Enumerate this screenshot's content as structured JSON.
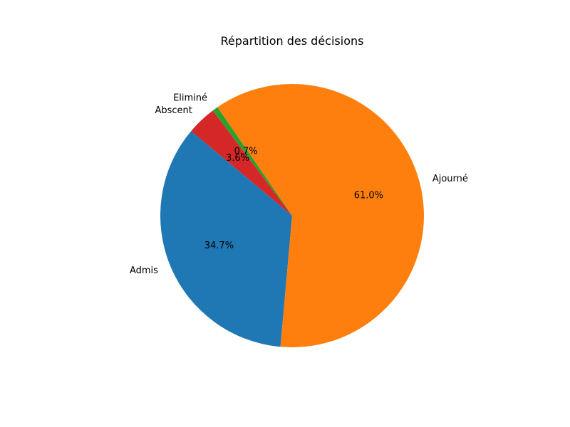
{
  "chart_data": {
    "type": "pie",
    "title": "Répartition des décisions",
    "categories": [
      "Admis",
      "Ajourné",
      "Eliminé",
      "Abscent"
    ],
    "values": [
      34.7,
      61.0,
      0.7,
      3.6
    ],
    "value_labels": [
      "34.7%",
      "61.0%",
      "0.7%",
      "3.6%"
    ],
    "colors": [
      "#1f77b4",
      "#ff7f0e",
      "#2ca02c",
      "#d62728"
    ],
    "start_angle_deg": 140,
    "direction": "counterclockwise"
  }
}
